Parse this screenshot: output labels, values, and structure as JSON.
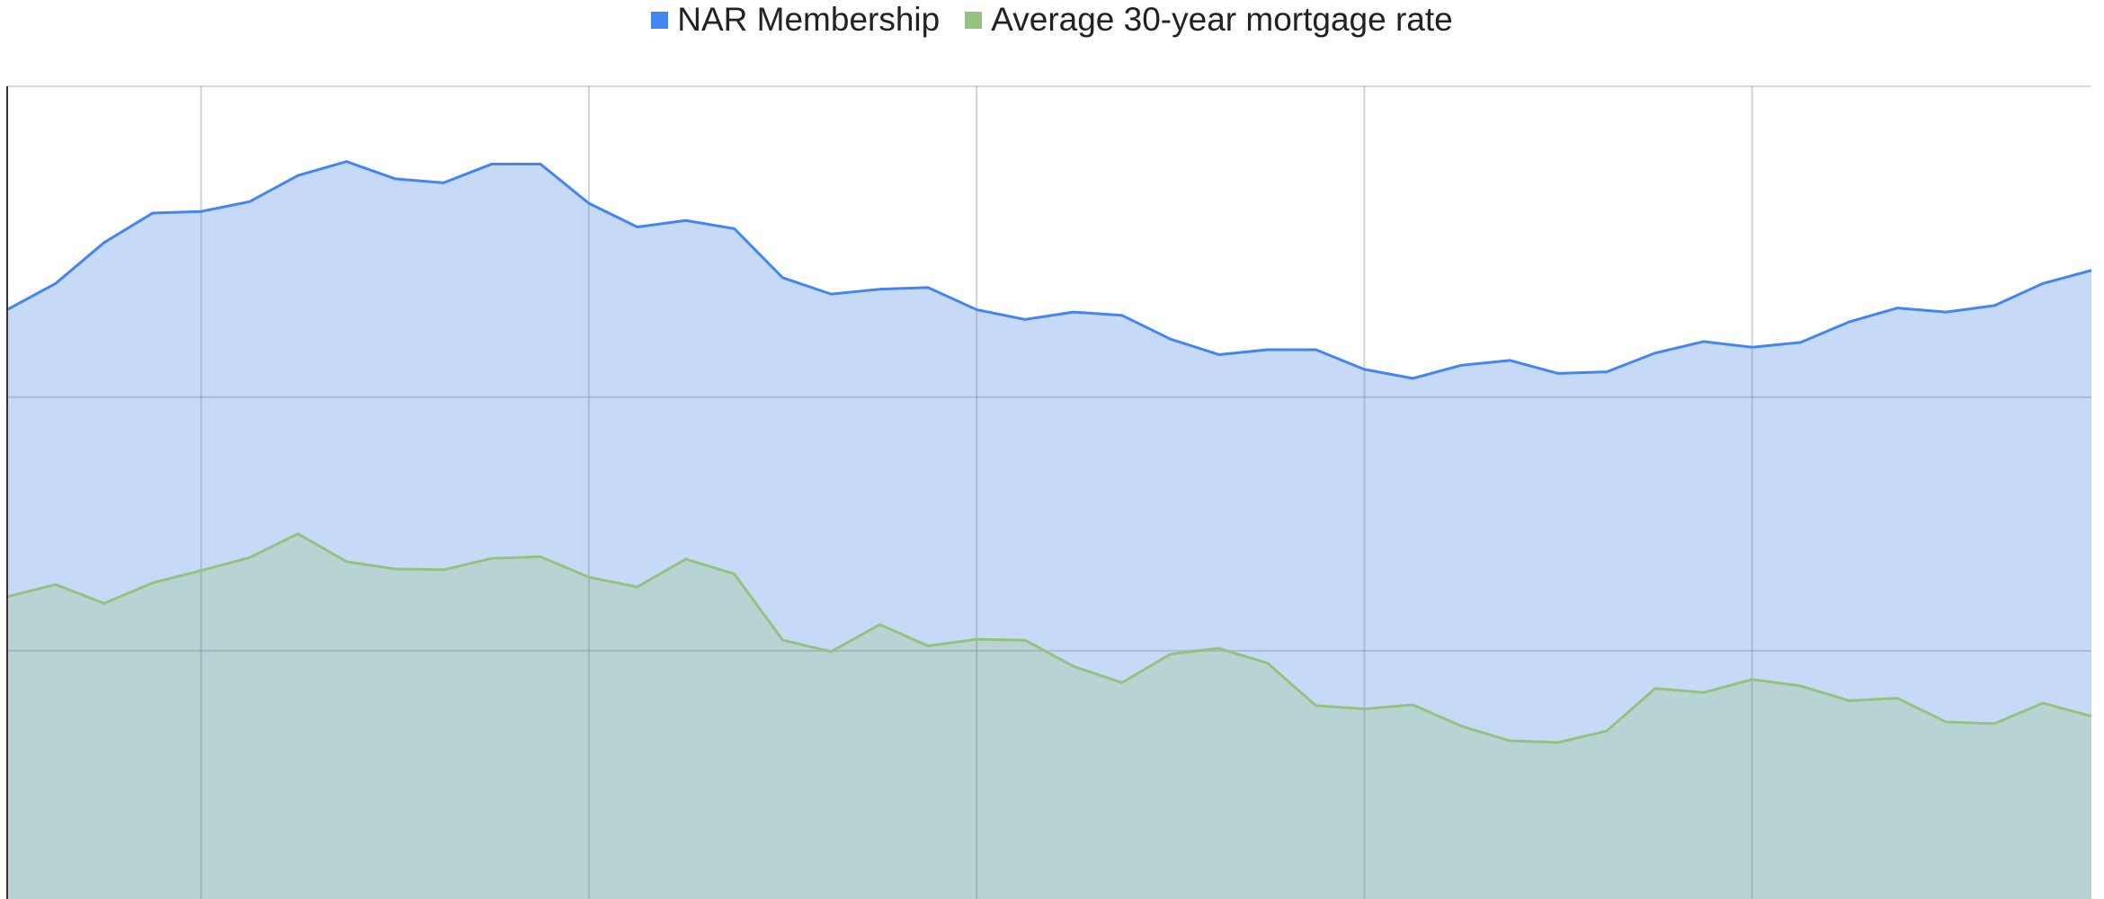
{
  "legend": {
    "items": [
      {
        "label": "NAR Membership",
        "color": "#4285f4"
      },
      {
        "label": "Average 30-year mortgage rate",
        "color": "#93c47d"
      }
    ]
  },
  "chart_data": {
    "type": "area",
    "title": "",
    "xlabel": "",
    "ylabel": "",
    "legend_position": "top-center",
    "grid": true,
    "ylim": [
      0,
      100
    ],
    "series": [
      {
        "name": "NAR Membership",
        "color": "#4285f4",
        "fill": "#c6daf8",
        "values": [
          72.7,
          75.9,
          80.9,
          84.5,
          84.7,
          85.9,
          89.1,
          90.8,
          88.7,
          88.2,
          90.5,
          90.5,
          85.7,
          82.8,
          83.6,
          82.6,
          76.6,
          74.6,
          75.2,
          75.4,
          72.7,
          71.5,
          72.4,
          72.0,
          69.1,
          67.2,
          67.8,
          67.8,
          65.4,
          64.3,
          65.9,
          66.5,
          64.9,
          65.1,
          67.4,
          68.8,
          68.1,
          68.7,
          71.2,
          72.9,
          72.4,
          73.2,
          75.9,
          77.5
        ]
      },
      {
        "name": "Average 30-year mortgage rate",
        "color": "#93c47d",
        "fill": "#b7d3d3",
        "values": [
          37.6,
          39.1,
          36.8,
          39.3,
          40.8,
          42.4,
          45.3,
          41.9,
          41.0,
          40.9,
          42.3,
          42.5,
          40.0,
          38.8,
          42.2,
          40.4,
          32.3,
          30.9,
          34.2,
          31.6,
          32.4,
          32.3,
          29.1,
          27.1,
          30.6,
          31.3,
          29.5,
          24.3,
          23.9,
          24.4,
          21.8,
          20.0,
          19.8,
          21.2,
          26.4,
          25.9,
          27.5,
          26.7,
          24.9,
          25.2,
          22.3,
          22.1,
          24.6,
          23.0
        ]
      }
    ],
    "gridlines": {
      "horizontal_values": [
        31,
        62
      ],
      "vertical_indices": [
        4,
        12,
        20,
        28,
        36
      ]
    }
  }
}
